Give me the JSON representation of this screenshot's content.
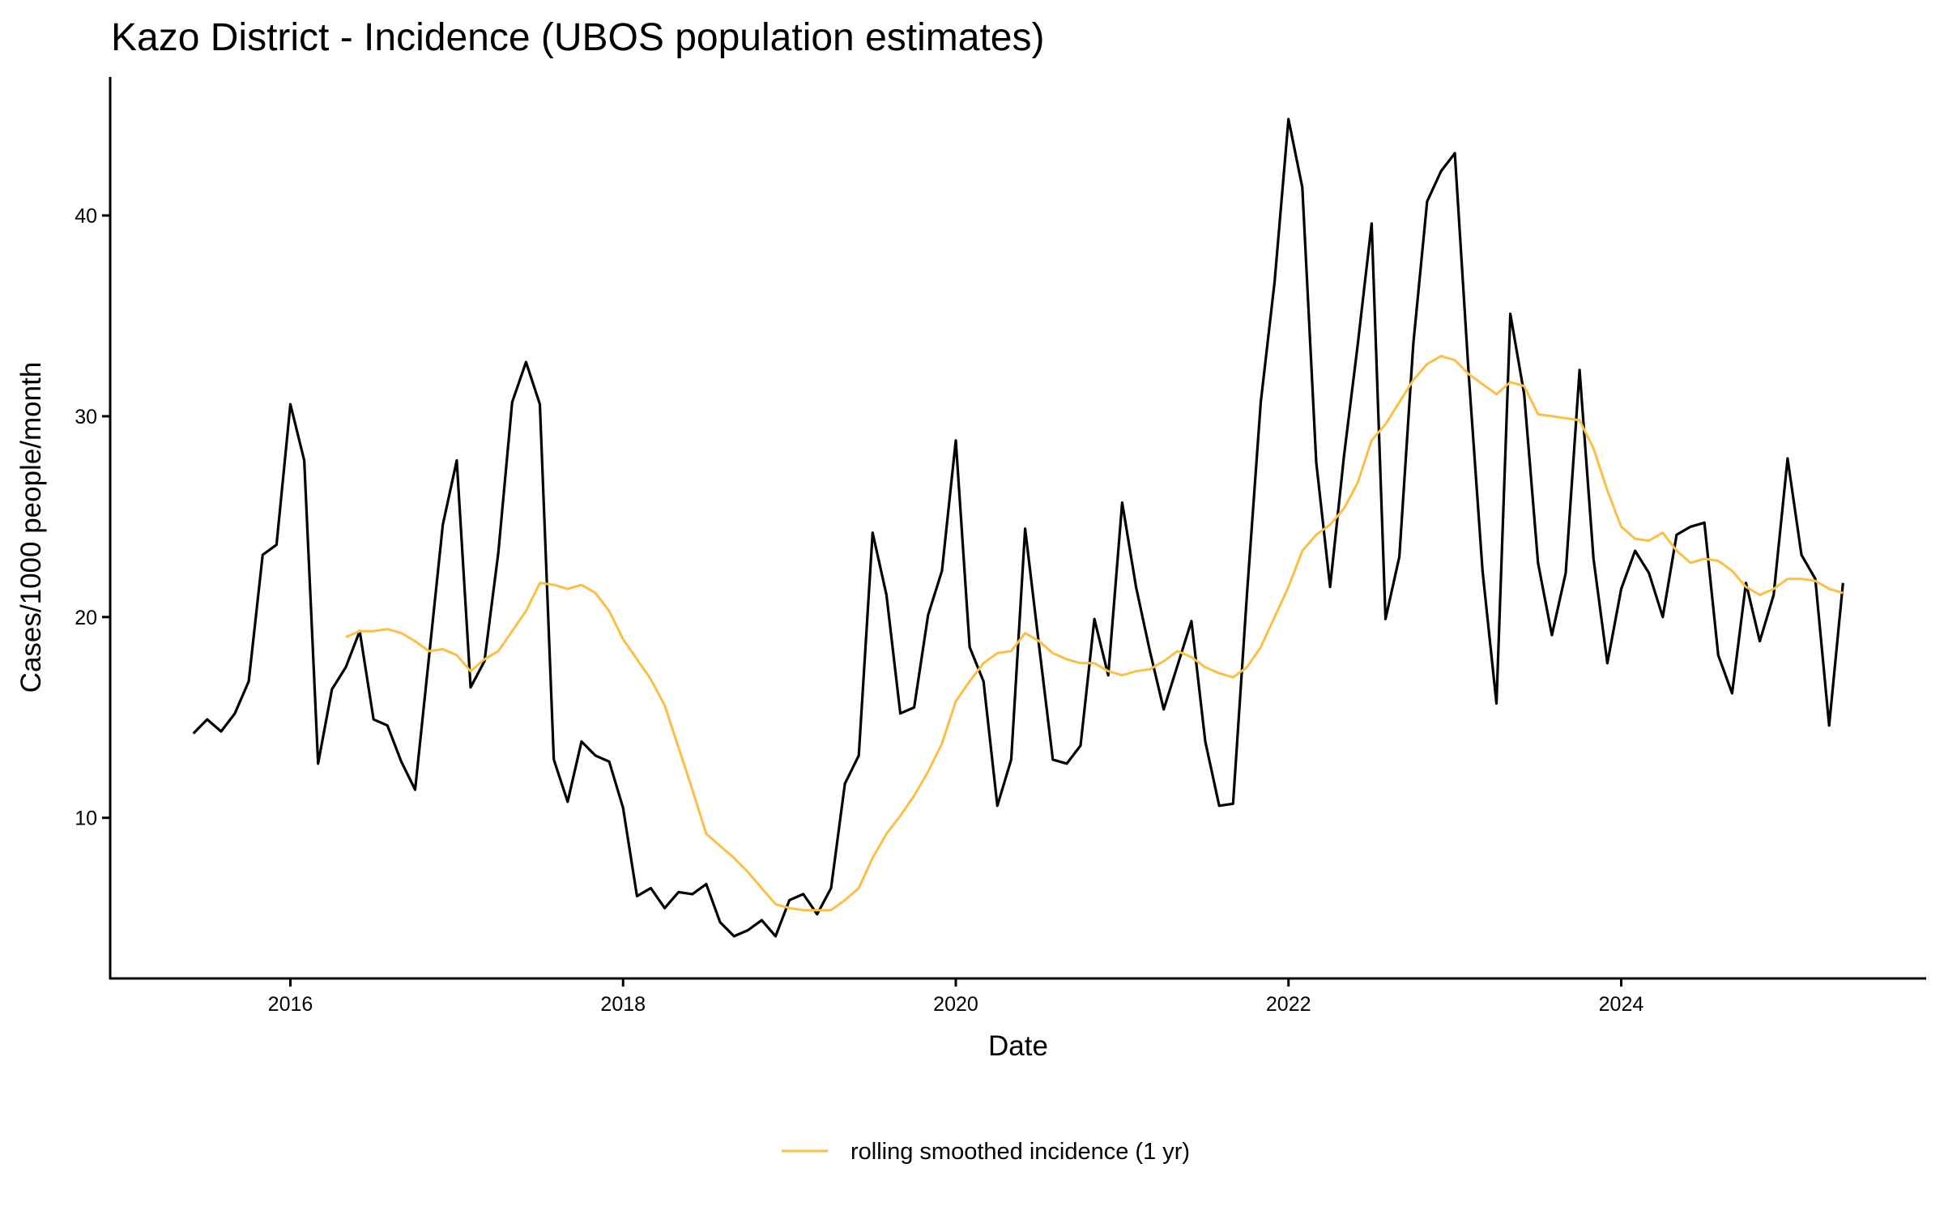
{
  "chart_data": {
    "type": "line",
    "title": "Kazo District - Incidence (UBOS population estimates)",
    "xlabel": "Date",
    "ylabel": "Cases/1000 people/month",
    "x_ticks": [
      "2016",
      "2018",
      "2020",
      "2022",
      "2024"
    ],
    "y_ticks": [
      10,
      20,
      30,
      40
    ],
    "xlim": [
      "2014-12",
      "2025-11"
    ],
    "ylim": [
      2.0,
      46.9
    ],
    "grid": false,
    "legend_position": "bottom",
    "series": [
      {
        "color": "#000000",
        "start": "2015-06",
        "frequency": "monthly",
        "values": [
          14.2,
          14.9,
          14.3,
          15.2,
          16.8,
          23.1,
          23.6,
          30.6,
          27.8,
          12.7,
          16.4,
          17.5,
          19.3,
          14.9,
          14.6,
          12.8,
          11.4,
          18.0,
          24.6,
          27.8,
          16.5,
          17.8,
          23.2,
          30.7,
          32.7,
          30.6,
          12.9,
          10.8,
          13.8,
          13.1,
          12.8,
          10.5,
          6.1,
          6.5,
          5.5,
          6.3,
          6.2,
          6.7,
          4.8,
          4.1,
          4.4,
          4.9,
          4.1,
          5.9,
          6.2,
          5.2,
          6.5,
          11.7,
          13.1,
          24.2,
          21.1,
          15.2,
          15.5,
          20.1,
          22.3,
          28.8,
          18.5,
          16.8,
          10.6,
          12.9,
          24.4,
          18.6,
          12.9,
          12.7,
          13.6,
          19.9,
          17.1,
          25.7,
          21.5,
          18.3,
          15.4,
          17.6,
          19.8,
          13.8,
          10.6,
          10.7,
          21.1,
          30.7,
          36.7,
          44.8,
          41.4,
          27.7,
          21.5,
          28.0,
          33.6,
          39.6,
          19.9,
          23.0,
          33.6,
          40.7,
          42.2,
          43.1,
          32.1,
          22.3,
          15.7,
          35.1,
          31.1,
          22.7,
          19.1,
          22.2,
          32.3,
          22.9,
          17.7,
          21.4,
          23.3,
          22.2,
          20.0,
          24.1,
          24.5,
          24.7,
          18.1,
          16.2,
          21.7,
          18.8,
          21.1,
          27.9,
          23.1,
          21.9,
          14.6,
          21.7
        ]
      },
      {
        "name": "rolling smoothed incidence (1 yr)",
        "color": "#FBBF45",
        "start": "2016-05",
        "frequency": "monthly",
        "values": [
          19.0,
          19.3,
          19.3,
          19.4,
          19.2,
          18.8,
          18.3,
          18.4,
          18.1,
          17.3,
          17.9,
          18.3,
          19.3,
          20.3,
          21.7,
          21.6,
          21.4,
          21.6,
          21.2,
          20.3,
          18.9,
          17.9,
          16.9,
          15.6,
          13.5,
          11.4,
          9.2,
          8.6,
          8.0,
          7.3,
          6.5,
          5.7,
          5.5,
          5.4,
          5.4,
          5.4,
          5.9,
          6.5,
          8.0,
          9.2,
          10.1,
          11.1,
          12.3,
          13.7,
          15.8,
          16.8,
          17.7,
          18.2,
          18.3,
          19.2,
          18.8,
          18.2,
          17.9,
          17.7,
          17.7,
          17.3,
          17.1,
          17.3,
          17.4,
          17.8,
          18.3,
          18.0,
          17.5,
          17.2,
          17.0,
          17.5,
          18.5,
          20.0,
          21.5,
          23.3,
          24.1,
          24.6,
          25.4,
          26.7,
          28.8,
          29.6,
          30.7,
          31.8,
          32.6,
          33.0,
          32.8,
          32.1,
          31.6,
          31.1,
          31.7,
          31.5,
          30.1,
          30.0,
          29.9,
          29.8,
          28.4,
          26.3,
          24.5,
          23.9,
          23.8,
          24.2,
          23.3,
          22.7,
          22.9,
          22.8,
          22.3,
          21.5,
          21.1,
          21.4,
          21.9,
          21.9,
          21.8,
          21.4,
          21.2
        ]
      }
    ]
  }
}
